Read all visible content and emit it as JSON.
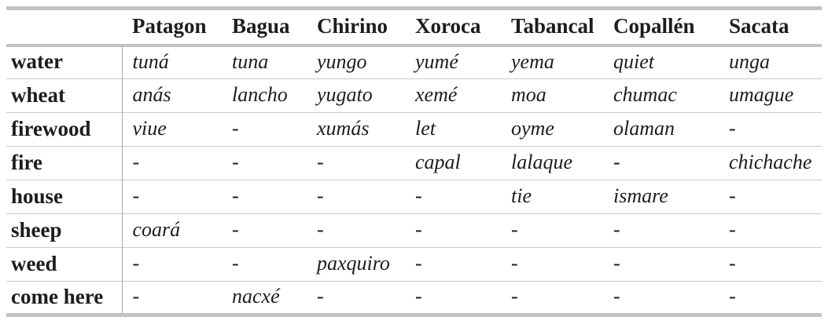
{
  "table": {
    "columns": [
      "",
      "Patagon",
      "Bagua",
      "Chirino",
      "Xoroca",
      "Tabancal",
      "Copallén",
      "Sacata"
    ],
    "rows": [
      {
        "label": "water",
        "cells": [
          "tuná",
          "tuna",
          "yungo",
          "yumé",
          "yema",
          "quiet",
          "unga"
        ]
      },
      {
        "label": "wheat",
        "cells": [
          "anás",
          "lancho",
          "yugato",
          "xemé",
          "moa",
          "chumac",
          "umague"
        ]
      },
      {
        "label": "firewood",
        "cells": [
          "viue",
          "-",
          "xumás",
          "let",
          "oyme",
          "olaman",
          "-"
        ]
      },
      {
        "label": "fire",
        "cells": [
          "-",
          "-",
          "-",
          "capal",
          "lalaque",
          "-",
          "chichache"
        ]
      },
      {
        "label": "house",
        "cells": [
          "-",
          "-",
          "-",
          "-",
          "tie",
          "ismare",
          "-"
        ]
      },
      {
        "label": "sheep",
        "cells": [
          "coará",
          "-",
          "-",
          "-",
          "-",
          "-",
          "-"
        ]
      },
      {
        "label": "weed",
        "cells": [
          "-",
          "-",
          "paxquiro",
          "-",
          "-",
          "-",
          "-"
        ]
      },
      {
        "label": "come here",
        "cells": [
          "-",
          "nacxé",
          "-",
          "-",
          "-",
          "-",
          "-"
        ]
      }
    ]
  }
}
